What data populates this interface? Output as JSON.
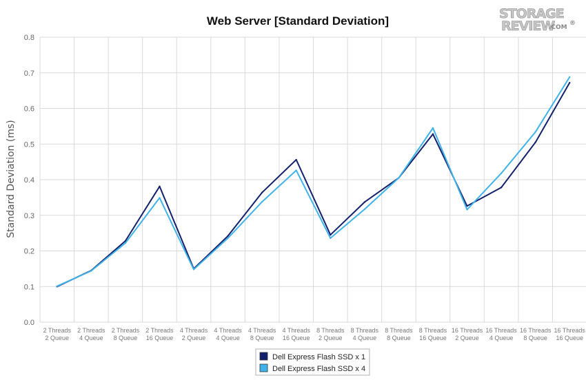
{
  "chart_data": {
    "type": "line",
    "title": "Web Server [Standard Deviation]",
    "xlabel": "",
    "ylabel": "Standard Deviation (ms)",
    "ylim": [
      0,
      0.8
    ],
    "yticks": [
      "0.0",
      "0.1",
      "0.2",
      "0.3",
      "0.4",
      "0.5",
      "0.6",
      "0.7",
      "0.8"
    ],
    "grid": true,
    "legend_position": "bottom-center",
    "categories": [
      [
        "2 Threads",
        "2 Queue"
      ],
      [
        "2 Threads",
        "4 Queue"
      ],
      [
        "2 Threads",
        "8 Queue"
      ],
      [
        "2 Threads",
        "16 Queue"
      ],
      [
        "4 Threads",
        "2 Queue"
      ],
      [
        "4 Threads",
        "4 Queue"
      ],
      [
        "4 Threads",
        "8 Queue"
      ],
      [
        "4 Threads",
        "16 Queue"
      ],
      [
        "8 Threads",
        "2 Queue"
      ],
      [
        "8 Threads",
        "4 Queue"
      ],
      [
        "8 Threads",
        "8 Queue"
      ],
      [
        "8 Threads",
        "16 Queue"
      ],
      [
        "16 Threads",
        "2 Queue"
      ],
      [
        "16 Threads",
        "4 Queue"
      ],
      [
        "16 Threads",
        "8 Queue"
      ],
      [
        "16 Threads",
        "16 Queue"
      ]
    ],
    "series": [
      {
        "name": "Dell Express Flash SSD x 1",
        "color": "#13206b",
        "values": [
          0.1,
          0.145,
          0.228,
          0.381,
          0.15,
          0.242,
          0.364,
          0.456,
          0.245,
          0.337,
          0.405,
          0.528,
          0.326,
          0.378,
          0.505,
          0.672
        ]
      },
      {
        "name": "Dell Express Flash SSD x 4",
        "color": "#3fb2e8",
        "values": [
          0.101,
          0.144,
          0.222,
          0.349,
          0.148,
          0.236,
          0.338,
          0.426,
          0.236,
          0.317,
          0.405,
          0.545,
          0.316,
          0.418,
          0.534,
          0.688
        ]
      }
    ]
  },
  "watermark": {
    "line1": "STORAGE",
    "line2": "REVIEW",
    "suffix": ".COM",
    "mark": "®"
  }
}
